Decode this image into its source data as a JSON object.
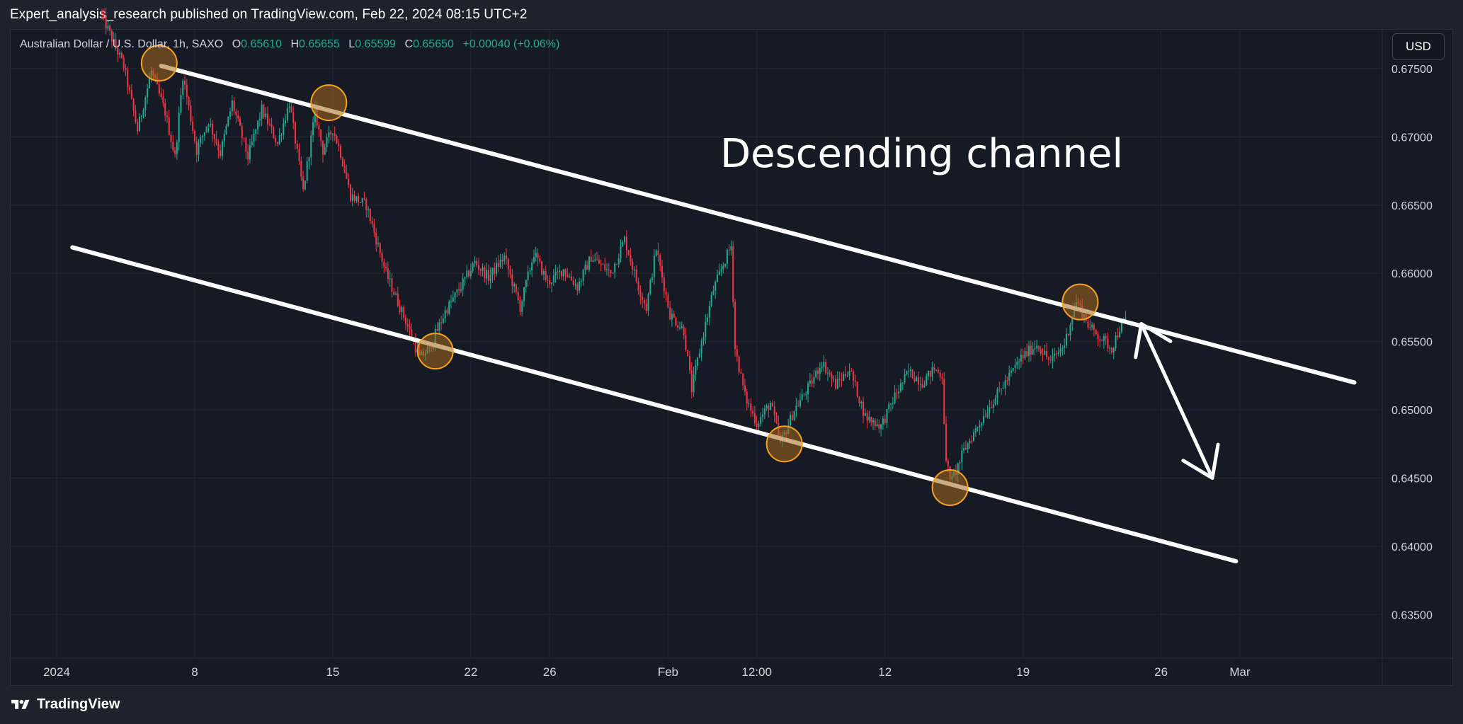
{
  "header": {
    "publisher": "Expert_analysis_research",
    "published_text": " published on TradingView.com, Feb 22, 2024 08:15 UTC+2"
  },
  "legend": {
    "symbol": "Australian Dollar / U.S. Dollar, 1h, SAXO",
    "open_label": "O",
    "open": "0.65610",
    "high_label": "H",
    "high": "0.65655",
    "low_label": "L",
    "low": "0.65599",
    "close_label": "C",
    "close": "0.65650",
    "change": "+0.00040 (+0.06%)"
  },
  "currency_button": "USD",
  "footer": {
    "brand": "TradingView"
  },
  "colors": {
    "background": "#1e222d",
    "pane": "#161a25",
    "up": "#22ab94",
    "down": "#f23645",
    "annotation": "#ffffff",
    "marker_fill": "#a5691c",
    "marker_stroke": "#f7a21b"
  },
  "chart_data": {
    "type": "candlestick",
    "title": "",
    "annotation_text": "Descending channel",
    "x_unit": "day index (0 = Jan 1, 2024)",
    "xlim": [
      0,
      74.5
    ],
    "ylim": [
      0.6318,
      0.6779
    ],
    "y_ticks": [
      0.675,
      0.67,
      0.665,
      0.66,
      0.655,
      0.65,
      0.645,
      0.64,
      0.635
    ],
    "y_tick_labels": [
      "0.67500",
      "0.67000",
      "0.66500",
      "0.66000",
      "0.65500",
      "0.65000",
      "0.64500",
      "0.64000",
      "0.63500"
    ],
    "x_ticks": [
      {
        "x": 0,
        "label": "2024"
      },
      {
        "x": 7,
        "label": "8"
      },
      {
        "x": 14,
        "label": "15"
      },
      {
        "x": 21,
        "label": "22"
      },
      {
        "x": 25,
        "label": "26"
      },
      {
        "x": 31,
        "label": "Feb"
      },
      {
        "x": 35.5,
        "label": "12:00"
      },
      {
        "x": 42,
        "label": "12"
      },
      {
        "x": 49,
        "label": "19"
      },
      {
        "x": 56,
        "label": "26"
      },
      {
        "x": 60,
        "label": "Mar"
      }
    ],
    "price_path": [
      [
        2.3,
        0.6792
      ],
      [
        3.5,
        0.6752
      ],
      [
        4.2,
        0.6705
      ],
      [
        4.9,
        0.6748
      ],
      [
        5.6,
        0.6718
      ],
      [
        6.1,
        0.6685
      ],
      [
        6.5,
        0.6745
      ],
      [
        7.2,
        0.669
      ],
      [
        7.8,
        0.6712
      ],
      [
        8.4,
        0.6688
      ],
      [
        9.0,
        0.6725
      ],
      [
        9.8,
        0.6685
      ],
      [
        10.5,
        0.672
      ],
      [
        11.3,
        0.6695
      ],
      [
        11.9,
        0.6725
      ],
      [
        12.6,
        0.666
      ],
      [
        13.2,
        0.6718
      ],
      [
        13.6,
        0.669
      ],
      [
        14.1,
        0.6706
      ],
      [
        14.5,
        0.6688
      ],
      [
        15.0,
        0.6657
      ],
      [
        15.8,
        0.665
      ],
      [
        16.8,
        0.66
      ],
      [
        17.8,
        0.6565
      ],
      [
        18.5,
        0.6538
      ],
      [
        19.0,
        0.6545
      ],
      [
        19.8,
        0.6572
      ],
      [
        20.5,
        0.6588
      ],
      [
        21.3,
        0.6608
      ],
      [
        22.0,
        0.6597
      ],
      [
        22.8,
        0.6612
      ],
      [
        23.6,
        0.6575
      ],
      [
        24.3,
        0.6615
      ],
      [
        25.0,
        0.6593
      ],
      [
        25.8,
        0.6603
      ],
      [
        26.5,
        0.659
      ],
      [
        27.2,
        0.6612
      ],
      [
        28.2,
        0.66
      ],
      [
        28.9,
        0.6625
      ],
      [
        29.6,
        0.659
      ],
      [
        30.0,
        0.6575
      ],
      [
        30.5,
        0.6618
      ],
      [
        31.2,
        0.657
      ],
      [
        31.9,
        0.6558
      ],
      [
        32.3,
        0.6515
      ],
      [
        32.8,
        0.655
      ],
      [
        33.4,
        0.6588
      ],
      [
        34.0,
        0.661
      ],
      [
        34.3,
        0.662
      ],
      [
        34.5,
        0.6545
      ],
      [
        35.0,
        0.651
      ],
      [
        35.6,
        0.649
      ],
      [
        36.3,
        0.6505
      ],
      [
        36.8,
        0.6475
      ],
      [
        37.5,
        0.65
      ],
      [
        38.3,
        0.6518
      ],
      [
        38.9,
        0.6535
      ],
      [
        39.6,
        0.6518
      ],
      [
        40.3,
        0.653
      ],
      [
        41.1,
        0.6495
      ],
      [
        41.9,
        0.6488
      ],
      [
        42.6,
        0.651
      ],
      [
        43.3,
        0.6528
      ],
      [
        44.0,
        0.652
      ],
      [
        44.6,
        0.653
      ],
      [
        45.0,
        0.6525
      ],
      [
        45.2,
        0.646
      ],
      [
        45.5,
        0.6448
      ],
      [
        46.1,
        0.647
      ],
      [
        46.8,
        0.6488
      ],
      [
        47.5,
        0.6505
      ],
      [
        48.2,
        0.652
      ],
      [
        49.0,
        0.6538
      ],
      [
        49.8,
        0.6548
      ],
      [
        50.5,
        0.6535
      ],
      [
        51.2,
        0.6548
      ],
      [
        51.8,
        0.658
      ],
      [
        52.5,
        0.656
      ],
      [
        53.1,
        0.6552
      ],
      [
        53.6,
        0.6545
      ],
      [
        54.0,
        0.656
      ],
      [
        54.3,
        0.6565
      ]
    ],
    "channel_upper": [
      [
        5.3,
        0.6752
      ],
      [
        65.8,
        0.652
      ]
    ],
    "channel_lower": [
      [
        0.8,
        0.6619
      ],
      [
        59.8,
        0.6389
      ]
    ],
    "arrow": [
      [
        55.0,
        0.6563
      ],
      [
        58.6,
        0.645
      ]
    ],
    "touch_points": [
      [
        5.2,
        0.6754
      ],
      [
        13.8,
        0.6725
      ],
      [
        19.2,
        0.6543
      ],
      [
        36.9,
        0.6475
      ],
      [
        45.3,
        0.6443
      ],
      [
        51.9,
        0.6579
      ]
    ]
  }
}
